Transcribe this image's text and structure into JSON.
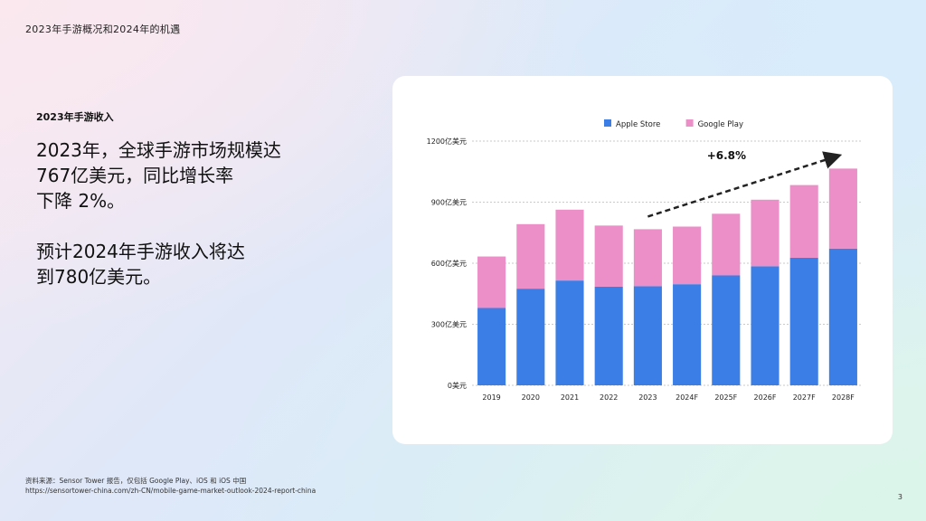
{
  "header": {
    "title": "2023年手游概况和2024年的机遇"
  },
  "left": {
    "section_label": "2023年手游收入",
    "headline_lines": [
      "2023年，全球手游市场规模达",
      "767亿美元，同比增长率",
      "下降 2%。",
      "",
      "预计2024年手游收入将达",
      "到780亿美元。"
    ]
  },
  "footer": {
    "source_line1": "资料来源：Sensor Tower 报告，仅包括 Google Play、iOS 和 iOS 中国",
    "source_line2": "https://sensortower-china.com/zh-CN/mobile-game-market-outlook-2024-report-china",
    "page_number": "3"
  },
  "colors": {
    "apple": "#3b7fe6",
    "google": "#ec8ec8",
    "grid": "#c9c9c9",
    "arrow": "#222222"
  },
  "chart_data": {
    "type": "bar",
    "stacked": true,
    "categories": [
      "2019",
      "2020",
      "2021",
      "2022",
      "2023",
      "2024F",
      "2025F",
      "2026F",
      "2027F",
      "2028F"
    ],
    "series": [
      {
        "name": "Apple Store",
        "values": [
          380,
          475,
          515,
          485,
          487,
          497,
          540,
          585,
          627,
          672
        ]
      },
      {
        "name": "Google Play",
        "values": [
          253,
          317,
          348,
          300,
          280,
          283,
          303,
          327,
          357,
          393
        ]
      }
    ],
    "y_ticks": [
      {
        "value": 0,
        "label": "0美元"
      },
      {
        "value": 300,
        "label": "300亿美元"
      },
      {
        "value": 600,
        "label": "600亿美元"
      },
      {
        "value": 900,
        "label": "900亿美元"
      },
      {
        "value": 1200,
        "label": "1200亿美元"
      }
    ],
    "ylim": [
      0,
      1200
    ],
    "grid": true,
    "legend_position": "top-center",
    "annotation": {
      "text": "+6.8%",
      "from_category": "2023",
      "to_category": "2028F"
    }
  }
}
